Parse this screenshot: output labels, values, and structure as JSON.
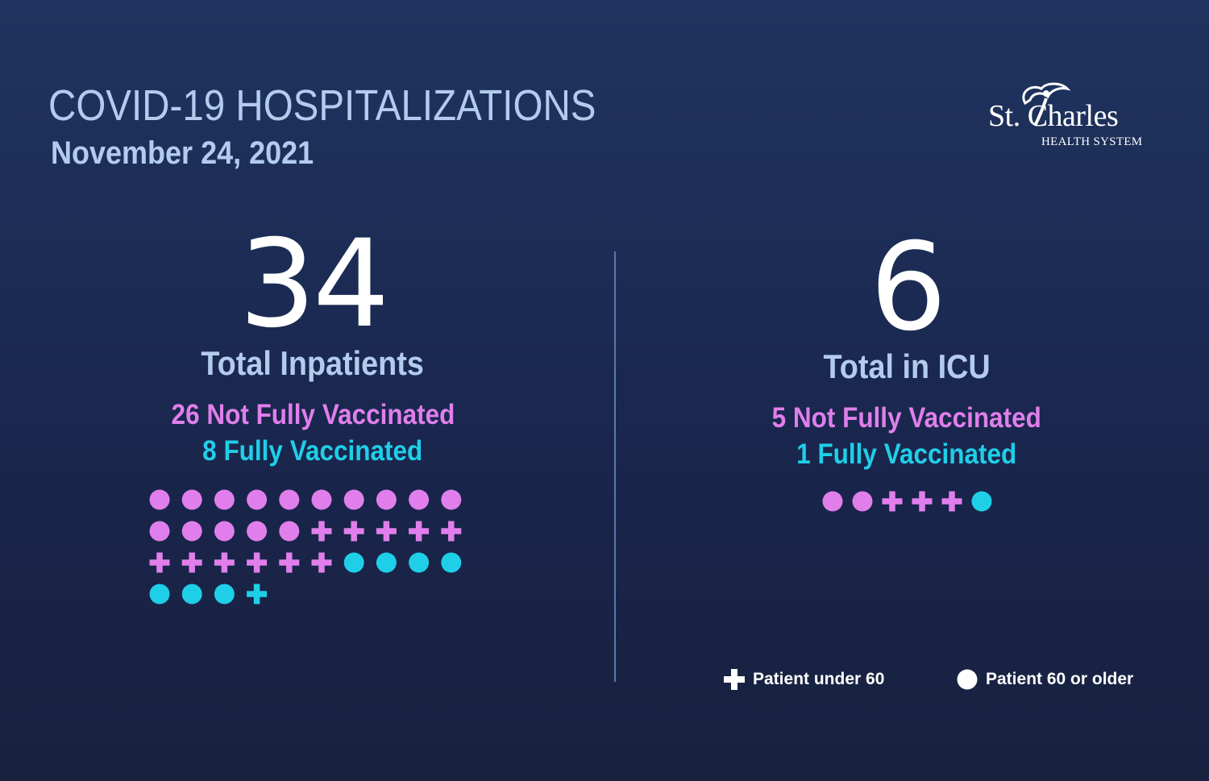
{
  "header": {
    "title": "COVID-19 HOSPITALIZATIONS",
    "date": "November 24, 2021"
  },
  "logo": {
    "name": "St. Charles",
    "subtitle": "HEALTH SYSTEM"
  },
  "colors": {
    "not_fully_vaccinated": "#e07fec",
    "fully_vaccinated": "#1fcfe8",
    "text_light": "#b3ccee"
  },
  "inpatients": {
    "total": "34",
    "label": "Total Inpatients",
    "not_fully_vaccinated": "26 Not Fully Vaccinated",
    "fully_vaccinated": "8 Fully Vaccinated",
    "icons": [
      {
        "shape": "circle",
        "status": "not_fully_vaccinated",
        "count": 15
      },
      {
        "shape": "cross",
        "status": "not_fully_vaccinated",
        "count": 11
      },
      {
        "shape": "circle",
        "status": "fully_vaccinated",
        "count": 7
      },
      {
        "shape": "cross",
        "status": "fully_vaccinated",
        "count": 1
      }
    ]
  },
  "icu": {
    "total": "6",
    "label": "Total in ICU",
    "not_fully_vaccinated": "5 Not Fully Vaccinated",
    "fully_vaccinated": "1 Fully Vaccinated",
    "icons": [
      {
        "shape": "circle",
        "status": "not_fully_vaccinated",
        "count": 2
      },
      {
        "shape": "cross",
        "status": "not_fully_vaccinated",
        "count": 3
      },
      {
        "shape": "circle",
        "status": "fully_vaccinated",
        "count": 1
      }
    ]
  },
  "legend": {
    "cross_label": "Patient under 60",
    "circle_label": "Patient 60 or older"
  }
}
